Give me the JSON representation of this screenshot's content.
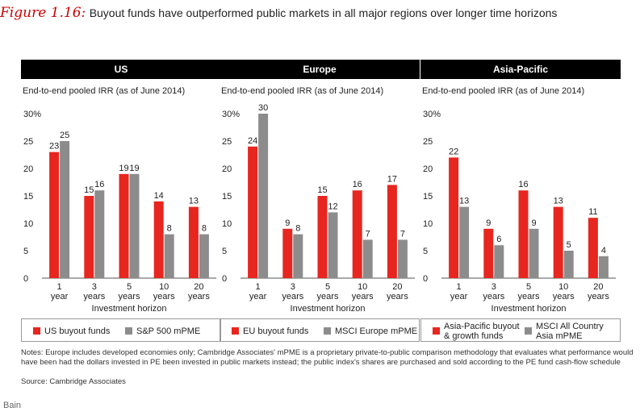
{
  "figure": {
    "label": "Figure 1.16:",
    "title": "Buyout funds have outperformed public markets in all major regions over longer time horizons"
  },
  "colors": {
    "buyout": "#e6261f",
    "public": "#8c8c8c"
  },
  "notes": "Notes: Europe includes developed economies only; Cambridge Associates' mPME is a proprietary private-to-public comparison methodology that evaluates what performance would have been had the dollars invested in PE been invested in public markets instead; the public index's shares are purchased and sold according to the PE fund cash-flow schedule",
  "source": "Source: Cambridge Associates",
  "brand": "Bain",
  "chart_data": [
    {
      "type": "bar",
      "title": "US",
      "subtitle": "End-to-end pooled IRR (as of June 2014)",
      "xlabel": "Investment horizon",
      "categories": [
        [
          "1",
          "year"
        ],
        [
          "3",
          "years"
        ],
        [
          "5",
          "years"
        ],
        [
          "10",
          "years"
        ],
        [
          "20",
          "years"
        ]
      ],
      "ylim": [
        0,
        30
      ],
      "yticks": [
        "30%",
        "25",
        "20",
        "15",
        "10",
        "5",
        "0"
      ],
      "series": [
        {
          "name": "US buyout funds",
          "values": [
            23,
            15,
            19,
            14,
            13
          ]
        },
        {
          "name": "S&P 500 mPME",
          "values": [
            25,
            16,
            19,
            8,
            8
          ]
        }
      ]
    },
    {
      "type": "bar",
      "title": "Europe",
      "subtitle": "End-to-end pooled IRR (as of June 2014)",
      "xlabel": "Investment horizon",
      "categories": [
        [
          "1",
          "year"
        ],
        [
          "3",
          "years"
        ],
        [
          "5",
          "years"
        ],
        [
          "10",
          "years"
        ],
        [
          "20",
          "years"
        ]
      ],
      "ylim": [
        0,
        30
      ],
      "yticks": [
        "30%",
        "25",
        "20",
        "15",
        "10",
        "5",
        "0"
      ],
      "series": [
        {
          "name": "EU buyout funds",
          "values": [
            24,
            9,
            15,
            16,
            17
          ]
        },
        {
          "name": "MSCI Europe mPME",
          "values": [
            30,
            8,
            12,
            7,
            7
          ]
        }
      ]
    },
    {
      "type": "bar",
      "title": "Asia-Pacific",
      "subtitle": "End-to-end pooled IRR (as of June 2014)",
      "xlabel": "Investment horizon",
      "categories": [
        [
          "1",
          "year"
        ],
        [
          "3",
          "years"
        ],
        [
          "5",
          "years"
        ],
        [
          "10",
          "years"
        ],
        [
          "20",
          "years"
        ]
      ],
      "ylim": [
        0,
        30
      ],
      "yticks": [
        "30%",
        "25",
        "20",
        "15",
        "10",
        "5",
        "0"
      ],
      "series": [
        {
          "name": "Asia-Pacific buyout & growth funds",
          "values": [
            22,
            9,
            16,
            13,
            11
          ]
        },
        {
          "name": "MSCI All Country Asia mPME",
          "values": [
            13,
            6,
            9,
            5,
            4
          ]
        }
      ],
      "legend_lines": [
        [
          "Asia-Pacific buyout",
          "& growth funds"
        ],
        [
          "MSCI All Country",
          "Asia mPME"
        ]
      ]
    }
  ]
}
